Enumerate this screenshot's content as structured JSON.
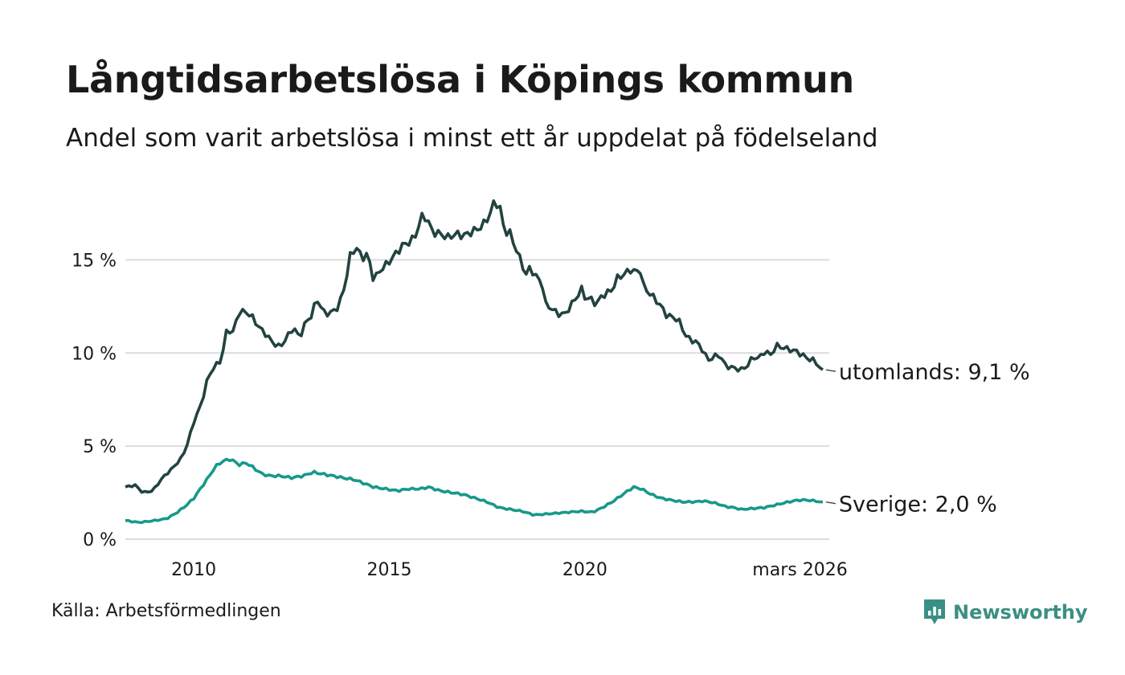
{
  "title": "Långtidsarbetslösa i Köpings kommun",
  "subtitle": "Andel som varit arbetslösa i minst ett år uppdelat på födelseland",
  "source": "Källa: Arbetsförmedlingen",
  "brand": {
    "name": "Newsworthy",
    "color": "#3a8f84"
  },
  "chart_data": {
    "type": "line",
    "x_start": 2008.25,
    "step_years": 0.0833333,
    "ylim": [
      0,
      18.6
    ],
    "xlim": [
      2008.25,
      2026.25
    ],
    "grid": true,
    "y_ticks": [
      {
        "value": 0,
        "label": "0 %"
      },
      {
        "value": 5,
        "label": "5 %"
      },
      {
        "value": 10,
        "label": "10 %"
      },
      {
        "value": 15,
        "label": "15 %"
      }
    ],
    "x_ticks": [
      {
        "value": 2010,
        "label": "2010"
      },
      {
        "value": 2015,
        "label": "2015"
      },
      {
        "value": 2020,
        "label": "2020"
      },
      {
        "value": 2025.5,
        "label": "mars 2026"
      }
    ],
    "series": [
      {
        "name": "utomlands",
        "label": "utomlands: 9,1 %",
        "color": "#22433f",
        "keyframes": [
          [
            2008.25,
            2.8
          ],
          [
            2008.5,
            2.9
          ],
          [
            2008.7,
            2.5
          ],
          [
            2008.95,
            2.6
          ],
          [
            2009.2,
            3.3
          ],
          [
            2009.45,
            3.8
          ],
          [
            2009.7,
            4.4
          ],
          [
            2009.85,
            5.2
          ],
          [
            2010.0,
            6.3
          ],
          [
            2010.2,
            7.3
          ],
          [
            2010.35,
            8.6
          ],
          [
            2010.5,
            9.2
          ],
          [
            2010.7,
            9.6
          ],
          [
            2010.85,
            11.3
          ],
          [
            2011.0,
            11.1
          ],
          [
            2011.15,
            12.2
          ],
          [
            2011.35,
            12.2
          ],
          [
            2011.5,
            11.9
          ],
          [
            2011.7,
            11.3
          ],
          [
            2011.85,
            11.0
          ],
          [
            2012.0,
            10.6
          ],
          [
            2012.2,
            10.3
          ],
          [
            2012.4,
            10.9
          ],
          [
            2012.55,
            11.4
          ],
          [
            2012.7,
            10.8
          ],
          [
            2012.85,
            11.6
          ],
          [
            2013.0,
            12.0
          ],
          [
            2013.15,
            12.9
          ],
          [
            2013.35,
            12.1
          ],
          [
            2013.55,
            12.2
          ],
          [
            2013.7,
            12.5
          ],
          [
            2013.85,
            13.5
          ],
          [
            2014.0,
            15.2
          ],
          [
            2014.15,
            15.7
          ],
          [
            2014.3,
            15.1
          ],
          [
            2014.45,
            15.3
          ],
          [
            2014.6,
            13.9
          ],
          [
            2014.75,
            14.4
          ],
          [
            2014.95,
            14.8
          ],
          [
            2015.15,
            15.3
          ],
          [
            2015.35,
            15.8
          ],
          [
            2015.55,
            16.0
          ],
          [
            2015.7,
            16.4
          ],
          [
            2015.8,
            17.3
          ],
          [
            2015.95,
            17.3
          ],
          [
            2016.1,
            16.5
          ],
          [
            2016.3,
            16.4
          ],
          [
            2016.5,
            16.2
          ],
          [
            2016.7,
            16.4
          ],
          [
            2016.9,
            16.3
          ],
          [
            2017.1,
            16.5
          ],
          [
            2017.3,
            16.7
          ],
          [
            2017.45,
            17.0
          ],
          [
            2017.6,
            17.6
          ],
          [
            2017.7,
            18.2
          ],
          [
            2017.85,
            17.7
          ],
          [
            2017.95,
            16.4
          ],
          [
            2018.05,
            16.6
          ],
          [
            2018.2,
            15.8
          ],
          [
            2018.35,
            15.0
          ],
          [
            2018.5,
            14.2
          ],
          [
            2018.6,
            14.6
          ],
          [
            2018.75,
            14.1
          ],
          [
            2018.9,
            13.8
          ],
          [
            2019.0,
            12.6
          ],
          [
            2019.15,
            12.4
          ],
          [
            2019.3,
            12.1
          ],
          [
            2019.5,
            12.1
          ],
          [
            2019.65,
            12.6
          ],
          [
            2019.8,
            13.0
          ],
          [
            2019.9,
            13.5
          ],
          [
            2020.0,
            13.0
          ],
          [
            2020.15,
            12.9
          ],
          [
            2020.3,
            12.6
          ],
          [
            2020.4,
            13.0
          ],
          [
            2020.55,
            13.2
          ],
          [
            2020.7,
            13.4
          ],
          [
            2020.85,
            14.1
          ],
          [
            2021.0,
            14.2
          ],
          [
            2021.15,
            14.5
          ],
          [
            2021.3,
            14.3
          ],
          [
            2021.4,
            14.6
          ],
          [
            2021.5,
            13.6
          ],
          [
            2021.65,
            13.2
          ],
          [
            2021.8,
            12.9
          ],
          [
            2021.95,
            12.5
          ],
          [
            2022.1,
            12.0
          ],
          [
            2022.3,
            11.9
          ],
          [
            2022.45,
            11.6
          ],
          [
            2022.55,
            11.0
          ],
          [
            2022.7,
            10.7
          ],
          [
            2022.85,
            10.6
          ],
          [
            2023.0,
            10.2
          ],
          [
            2023.15,
            9.6
          ],
          [
            2023.3,
            9.8
          ],
          [
            2023.45,
            9.9
          ],
          [
            2023.6,
            9.3
          ],
          [
            2023.8,
            9.2
          ],
          [
            2024.0,
            9.1
          ],
          [
            2024.15,
            9.3
          ],
          [
            2024.3,
            9.8
          ],
          [
            2024.45,
            9.7
          ],
          [
            2024.6,
            10.1
          ],
          [
            2024.75,
            9.9
          ],
          [
            2024.9,
            10.4
          ],
          [
            2025.05,
            10.3
          ],
          [
            2025.2,
            10.2
          ],
          [
            2025.4,
            10.1
          ],
          [
            2025.55,
            9.9
          ],
          [
            2025.7,
            9.7
          ],
          [
            2025.85,
            9.6
          ],
          [
            2025.95,
            9.4
          ],
          [
            2026.05,
            9.1
          ]
        ]
      },
      {
        "name": "Sverige",
        "label": "Sverige: 2,0 %",
        "color": "#17998a",
        "keyframes": [
          [
            2008.25,
            1.0
          ],
          [
            2008.6,
            0.9
          ],
          [
            2009.0,
            1.0
          ],
          [
            2009.3,
            1.1
          ],
          [
            2009.55,
            1.4
          ],
          [
            2009.8,
            1.8
          ],
          [
            2010.0,
            2.2
          ],
          [
            2010.2,
            2.8
          ],
          [
            2010.4,
            3.4
          ],
          [
            2010.55,
            3.9
          ],
          [
            2010.75,
            4.2
          ],
          [
            2010.95,
            4.3
          ],
          [
            2011.15,
            4.0
          ],
          [
            2011.35,
            4.1
          ],
          [
            2011.55,
            3.8
          ],
          [
            2011.75,
            3.5
          ],
          [
            2011.95,
            3.4
          ],
          [
            2012.2,
            3.4
          ],
          [
            2012.5,
            3.3
          ],
          [
            2012.8,
            3.4
          ],
          [
            2013.05,
            3.6
          ],
          [
            2013.3,
            3.5
          ],
          [
            2013.55,
            3.4
          ],
          [
            2013.8,
            3.3
          ],
          [
            2014.1,
            3.2
          ],
          [
            2014.35,
            3.0
          ],
          [
            2014.6,
            2.8
          ],
          [
            2014.9,
            2.7
          ],
          [
            2015.2,
            2.6
          ],
          [
            2015.5,
            2.7
          ],
          [
            2015.8,
            2.7
          ],
          [
            2016.0,
            2.8
          ],
          [
            2016.3,
            2.6
          ],
          [
            2016.6,
            2.5
          ],
          [
            2016.9,
            2.4
          ],
          [
            2017.2,
            2.2
          ],
          [
            2017.5,
            2.0
          ],
          [
            2017.8,
            1.7
          ],
          [
            2018.1,
            1.6
          ],
          [
            2018.4,
            1.5
          ],
          [
            2018.7,
            1.3
          ],
          [
            2019.0,
            1.35
          ],
          [
            2019.3,
            1.4
          ],
          [
            2019.6,
            1.45
          ],
          [
            2019.9,
            1.5
          ],
          [
            2020.2,
            1.45
          ],
          [
            2020.45,
            1.7
          ],
          [
            2020.7,
            2.0
          ],
          [
            2020.9,
            2.3
          ],
          [
            2021.1,
            2.6
          ],
          [
            2021.25,
            2.8
          ],
          [
            2021.45,
            2.7
          ],
          [
            2021.7,
            2.4
          ],
          [
            2021.95,
            2.2
          ],
          [
            2022.2,
            2.1
          ],
          [
            2022.5,
            2.0
          ],
          [
            2022.8,
            2.0
          ],
          [
            2023.0,
            2.05
          ],
          [
            2023.2,
            2.0
          ],
          [
            2023.4,
            1.9
          ],
          [
            2023.6,
            1.75
          ],
          [
            2023.8,
            1.7
          ],
          [
            2024.0,
            1.6
          ],
          [
            2024.3,
            1.65
          ],
          [
            2024.6,
            1.7
          ],
          [
            2024.9,
            1.85
          ],
          [
            2025.2,
            2.0
          ],
          [
            2025.45,
            2.1
          ],
          [
            2025.7,
            2.1
          ],
          [
            2025.9,
            2.05
          ],
          [
            2026.05,
            2.0
          ]
        ]
      }
    ]
  }
}
